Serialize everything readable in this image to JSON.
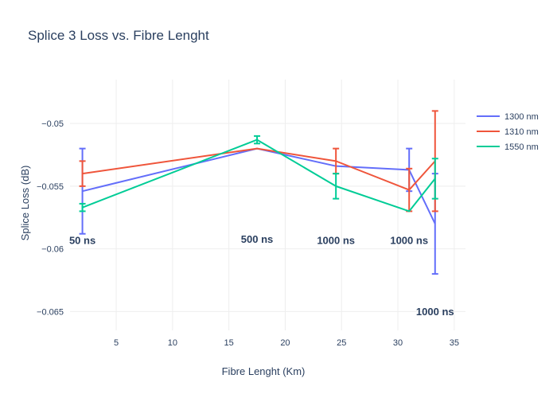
{
  "chart_data": {
    "type": "line",
    "title": "Splice 3 Loss vs. Fibre Lenght",
    "xlabel": "Fibre Lenght (Km)",
    "ylabel": "Splice Loss (dB)",
    "xlim": [
      0.9,
      36
    ],
    "ylim": [
      -0.0665,
      -0.0465
    ],
    "x_ticks": [
      5,
      10,
      15,
      20,
      25,
      30,
      35
    ],
    "x_tick_labels": [
      "5",
      "10",
      "15",
      "20",
      "25",
      "30",
      "35"
    ],
    "y_ticks": [
      -0.05,
      -0.055,
      -0.06,
      -0.065
    ],
    "y_tick_labels": [
      "−0.05",
      "−0.055",
      "−0.06",
      "−0.065"
    ],
    "grid": true,
    "legend_position": "top-right",
    "series": [
      {
        "name": "1300 nm",
        "color": "#636efa",
        "x": [
          2,
          17.5,
          24.5,
          31,
          33.3
        ],
        "y": [
          -0.0554,
          -0.052,
          -0.0534,
          -0.0537,
          -0.058
        ],
        "error": [
          0.0034,
          null,
          null,
          0.0017,
          0.004
        ]
      },
      {
        "name": "1310 nm",
        "color": "#ef553b",
        "x": [
          2,
          17.5,
          24.5,
          31,
          33.3
        ],
        "y": [
          -0.054,
          -0.052,
          -0.053,
          -0.0553,
          -0.053
        ],
        "error": [
          0.001,
          null,
          0.001,
          0.0017,
          0.004
        ]
      },
      {
        "name": "1550 nm",
        "color": "#00cc96",
        "x": [
          2,
          17.5,
          24.5,
          31,
          33.3
        ],
        "y": [
          -0.0567,
          -0.0513,
          -0.055,
          -0.057,
          -0.0544
        ],
        "error": [
          0.0003,
          0.0003,
          0.001,
          null,
          0.0016
        ]
      }
    ],
    "annotations": [
      {
        "text": "50 ns",
        "x": 2,
        "y": -0.0596
      },
      {
        "text": "500 ns",
        "x": 17.5,
        "y": -0.0595
      },
      {
        "text": "1000 ns",
        "x": 24.5,
        "y": -0.0596
      },
      {
        "text": "1000 ns",
        "x": 31,
        "y": -0.0596
      },
      {
        "text": "1000 ns",
        "x": 33.3,
        "y": -0.0653
      }
    ]
  }
}
